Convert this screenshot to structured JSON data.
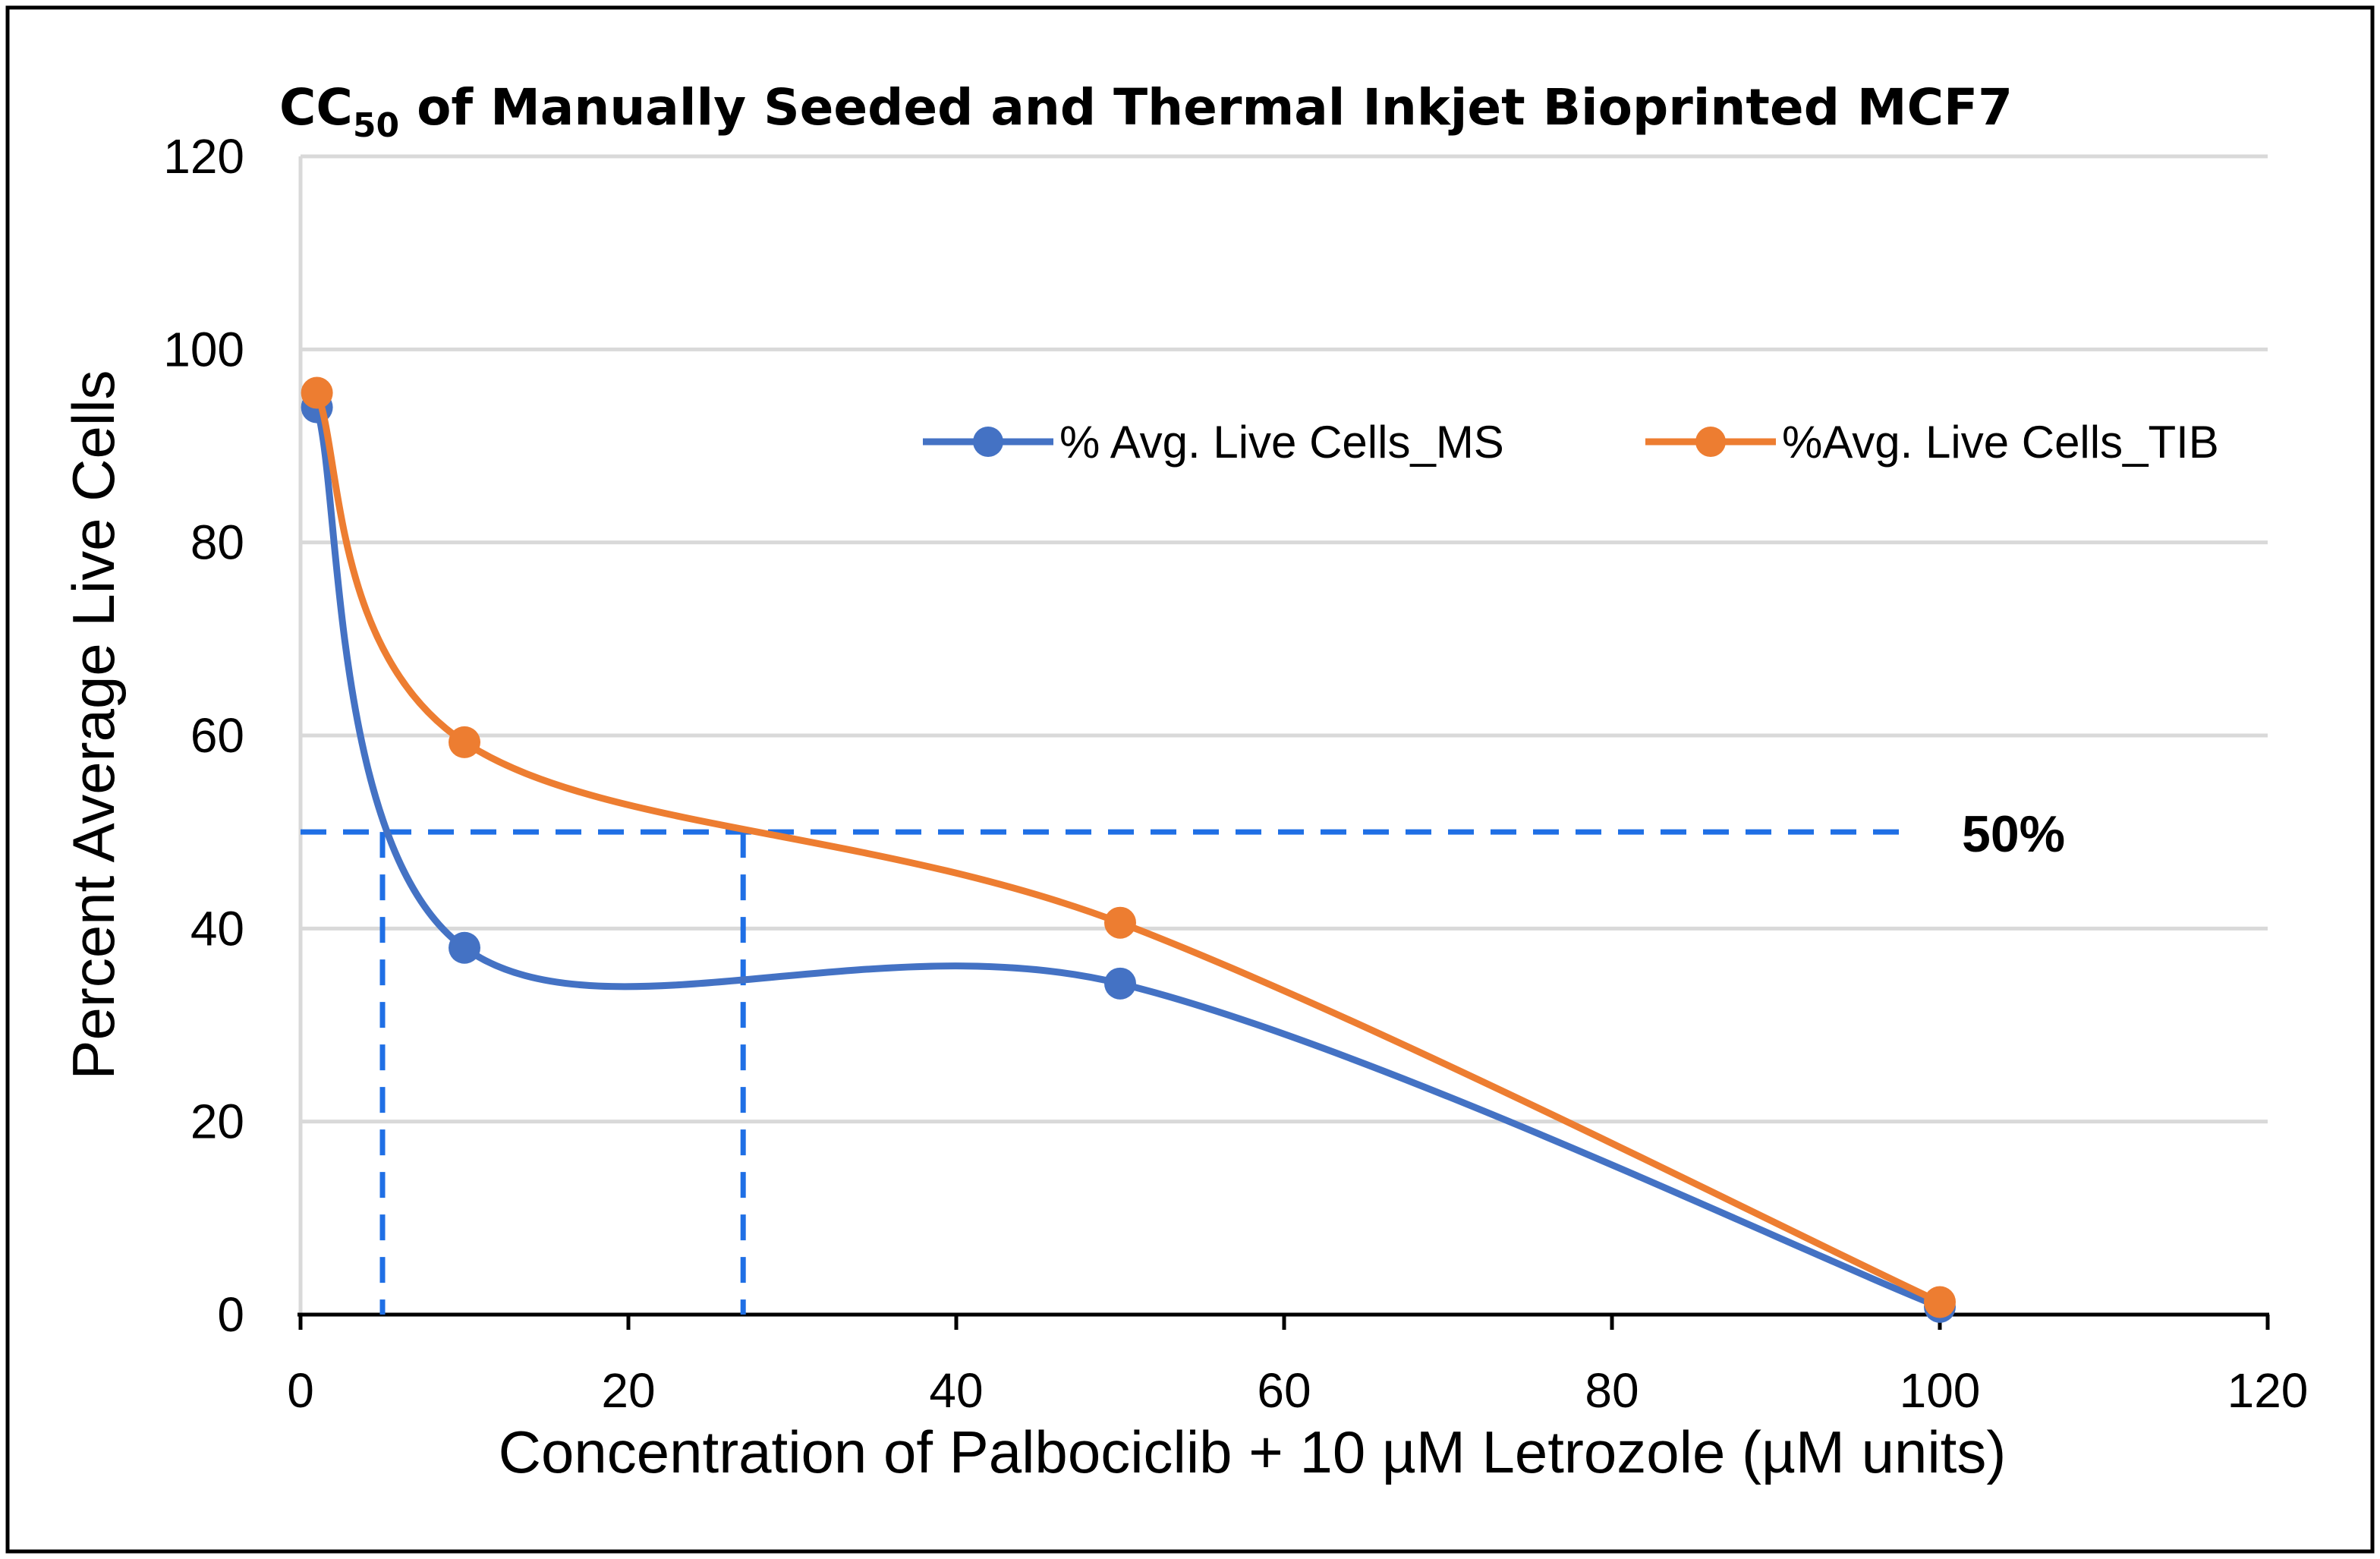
{
  "chart_data": {
    "type": "scatter",
    "title_main": "CC",
    "title_sub": "50",
    "title_rest": " of Manually Seeded and Thermal Inkjet Bioprinted MCF7",
    "xlabel": "Concentration of Palbociclib + 10 µM Letrozole  (µM units)",
    "ylabel": "Percent Average Live Cells",
    "xlim": [
      0,
      120
    ],
    "ylim": [
      0,
      120
    ],
    "x_ticks": [
      0,
      20,
      40,
      60,
      80,
      100,
      120
    ],
    "y_ticks": [
      0,
      20,
      40,
      60,
      80,
      100,
      120
    ],
    "x_tick_labels": [
      "0",
      "20",
      "40",
      "60",
      "80",
      "100",
      "120"
    ],
    "y_tick_labels": [
      "0",
      "20",
      "40",
      "60",
      "80",
      "100",
      "120"
    ],
    "grid": "horizontal",
    "legend_position": "upper-right",
    "series": [
      {
        "name": "% Avg. Live Cells_MS",
        "color": "#4472C4",
        "x": [
          1,
          10,
          50,
          100
        ],
        "y": [
          94,
          38,
          34.3,
          0.8
        ]
      },
      {
        "name": "%Avg. Live Cells_TIB",
        "color": "#ED7D31",
        "x": [
          1,
          10,
          50,
          100
        ],
        "y": [
          95.5,
          59.3,
          40.6,
          1.3
        ]
      }
    ],
    "reference_lines": {
      "color": "#1F6FE5",
      "horizontal_y": 50,
      "horizontal_x_end": 98,
      "vertical_x": [
        5,
        27
      ],
      "label": "50%"
    }
  }
}
